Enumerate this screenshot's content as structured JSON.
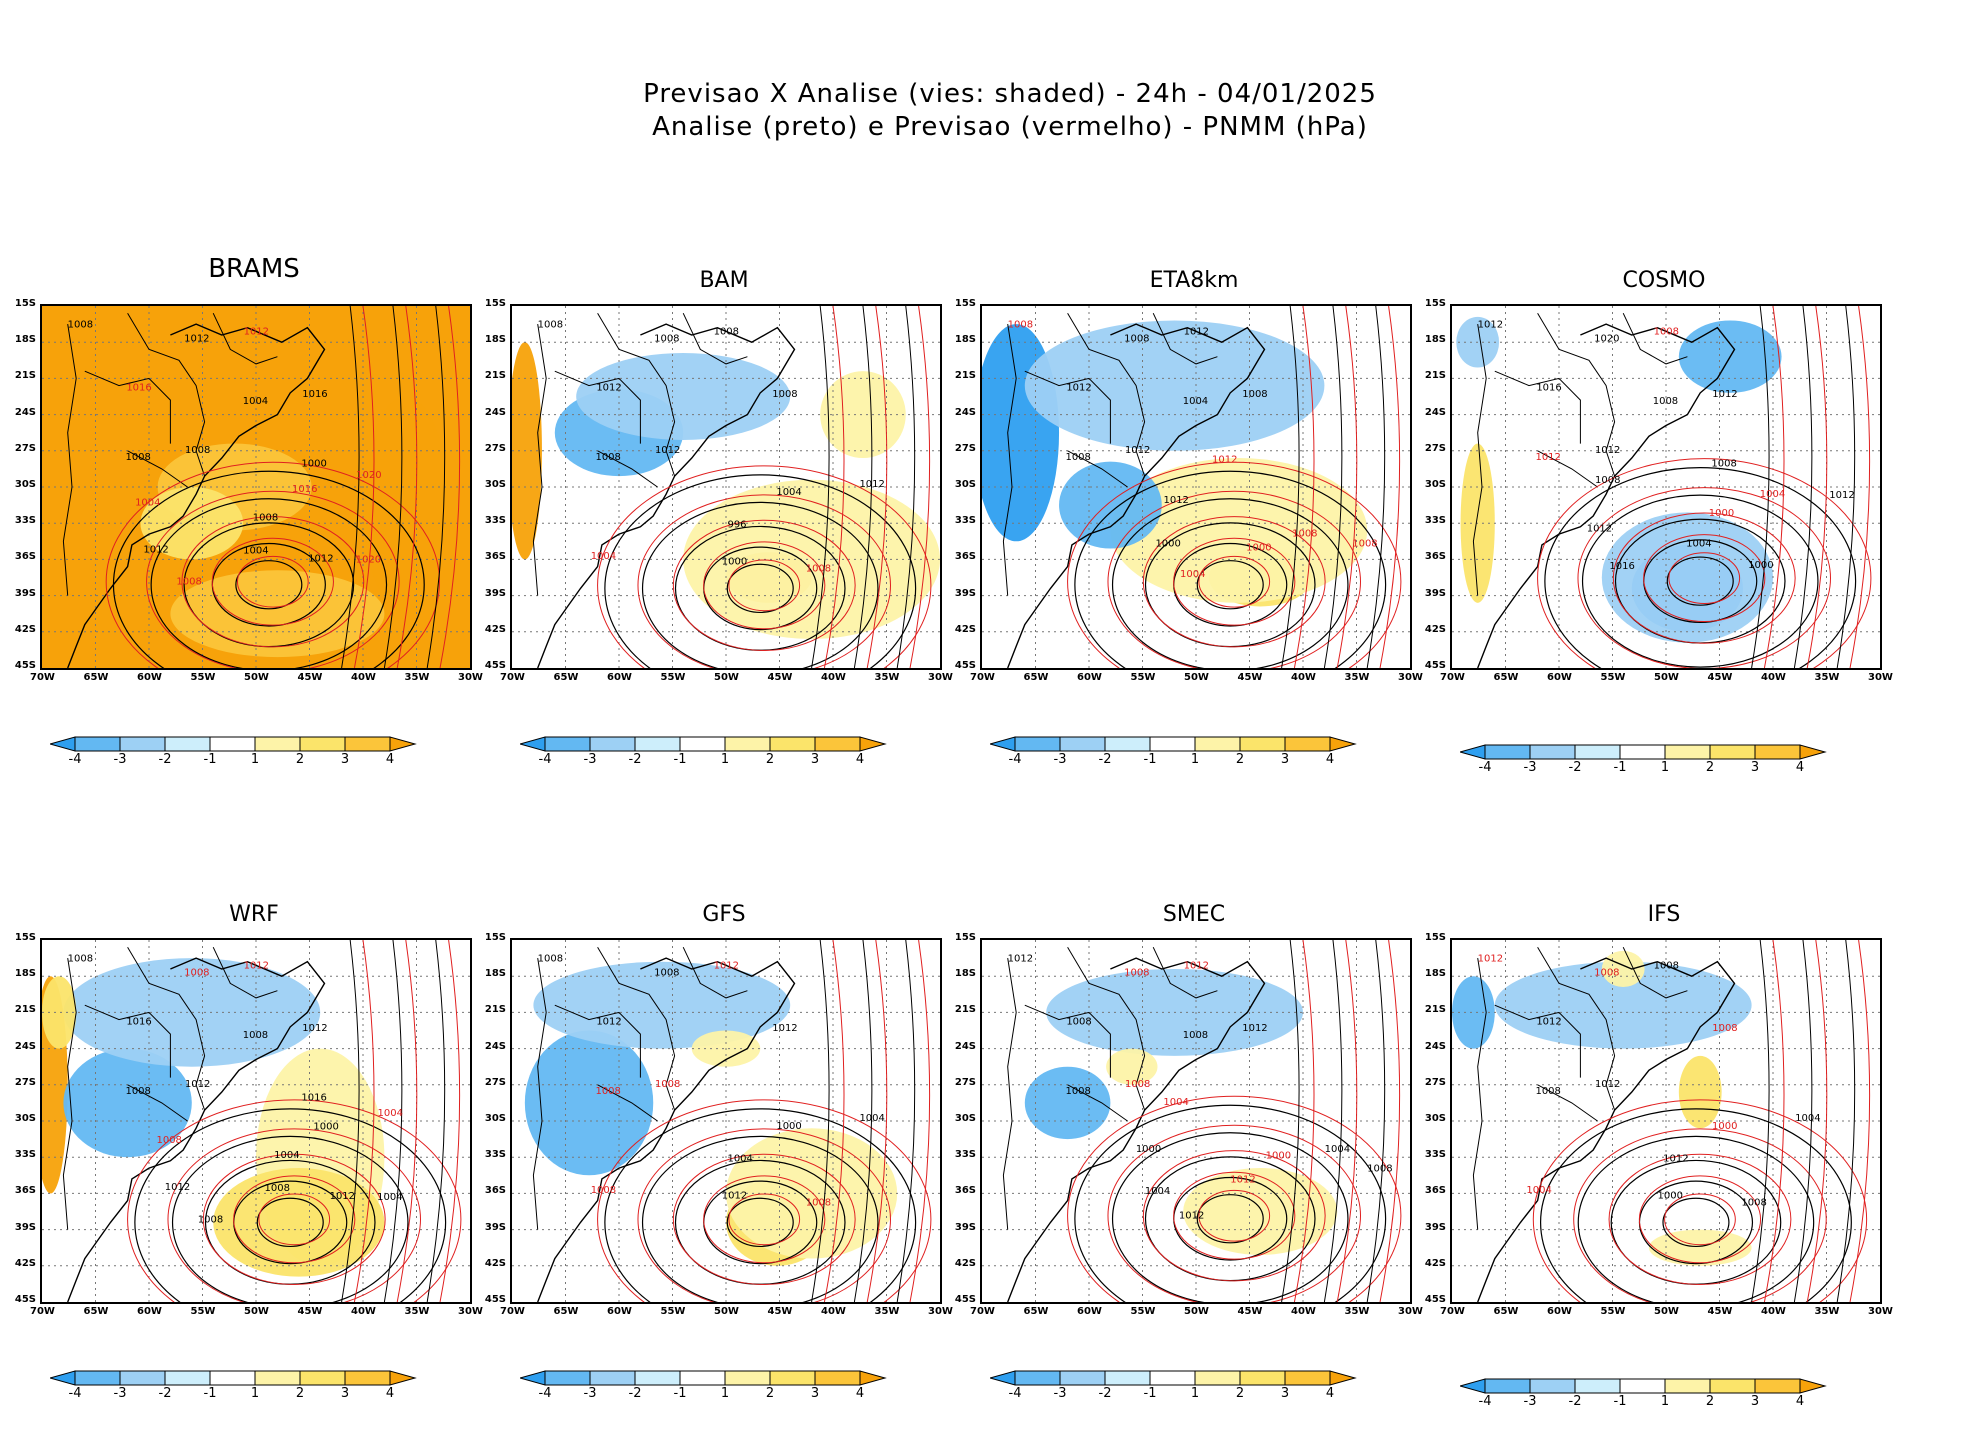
{
  "figure": {
    "title_line1": "Previsao X Analise (vies: shaded) - 24h - 04/01/2025",
    "title_line2": "Analise (preto) e Previsao (vermelho) - PNMM (hPa)"
  },
  "axes": {
    "lat_labels": [
      "15S",
      "18S",
      "21S",
      "24S",
      "27S",
      "30S",
      "33S",
      "36S",
      "39S",
      "42S",
      "45S"
    ],
    "lon_labels": [
      "70W",
      "65W",
      "60W",
      "55W",
      "50W",
      "45W",
      "40W",
      "35W",
      "30W"
    ]
  },
  "colorbar": {
    "labels": [
      "-4",
      "-3",
      "-2",
      "-1",
      "1",
      "2",
      "3",
      "4"
    ],
    "colors": [
      "#2e9ff0",
      "#63b8f2",
      "#9dd0f4",
      "#cdeefb",
      "#ffffff",
      "#fdf3a8",
      "#fbe46a",
      "#fbc53a",
      "#f7a20a"
    ]
  },
  "colors": {
    "analysis": "#000000",
    "forecast": "#e02020",
    "coast": "#000000"
  },
  "panels": [
    {
      "name": "BRAMS",
      "contour_labels": [
        {
          "t": "1008",
          "c": "k"
        },
        {
          "t": "1016",
          "c": "r"
        },
        {
          "t": "1008",
          "c": "k"
        },
        {
          "t": "1012",
          "c": "r"
        },
        {
          "t": "1016",
          "c": "k"
        },
        {
          "t": "1008",
          "c": "k"
        },
        {
          "t": "1012",
          "c": "k"
        },
        {
          "t": "1004",
          "c": "k"
        },
        {
          "t": "1000",
          "c": "k"
        },
        {
          "t": "1008",
          "c": "r"
        },
        {
          "t": "1012",
          "c": "k"
        },
        {
          "t": "1004",
          "c": "r"
        },
        {
          "t": "1004",
          "c": "k"
        },
        {
          "t": "1008",
          "c": "k"
        },
        {
          "t": "1016",
          "c": "r"
        },
        {
          "t": "1020",
          "c": "r"
        },
        {
          "t": "1012",
          "c": "k"
        },
        {
          "t": "1020",
          "c": "r"
        }
      ]
    },
    {
      "name": "BAM",
      "contour_labels": [
        {
          "t": "1008",
          "c": "k"
        },
        {
          "t": "1012",
          "c": "k"
        },
        {
          "t": "1012",
          "c": "k"
        },
        {
          "t": "1008",
          "c": "k"
        },
        {
          "t": "1008",
          "c": "k"
        },
        {
          "t": "1008",
          "c": "k"
        },
        {
          "t": "1008",
          "c": "k"
        },
        {
          "t": "1004",
          "c": "r"
        },
        {
          "t": "1000",
          "c": "k"
        },
        {
          "t": "996",
          "c": "k"
        },
        {
          "t": "1004",
          "c": "k"
        },
        {
          "t": "1012",
          "c": "k"
        },
        {
          "t": "1008",
          "c": "r"
        }
      ]
    },
    {
      "name": "ETA8km",
      "contour_labels": [
        {
          "t": "1008",
          "c": "r"
        },
        {
          "t": "1012",
          "c": "k"
        },
        {
          "t": "1012",
          "c": "k"
        },
        {
          "t": "1012",
          "c": "k"
        },
        {
          "t": "1008",
          "c": "k"
        },
        {
          "t": "1008",
          "c": "k"
        },
        {
          "t": "1008",
          "c": "k"
        },
        {
          "t": "1004",
          "c": "k"
        },
        {
          "t": "1004",
          "c": "r"
        },
        {
          "t": "1000",
          "c": "k"
        },
        {
          "t": "1012",
          "c": "k"
        },
        {
          "t": "1012",
          "c": "r"
        },
        {
          "t": "1000",
          "c": "r"
        },
        {
          "t": "1008",
          "c": "r"
        },
        {
          "t": "1008",
          "c": "r"
        }
      ]
    },
    {
      "name": "COSMO",
      "contour_labels": [
        {
          "t": "1012",
          "c": "k"
        },
        {
          "t": "1016",
          "c": "k"
        },
        {
          "t": "1012",
          "c": "k"
        },
        {
          "t": "1008",
          "c": "r"
        },
        {
          "t": "1012",
          "c": "k"
        },
        {
          "t": "1012",
          "c": "r"
        },
        {
          "t": "1020",
          "c": "k"
        },
        {
          "t": "1008",
          "c": "k"
        },
        {
          "t": "1008",
          "c": "k"
        },
        {
          "t": "1016",
          "c": "k"
        },
        {
          "t": "1012",
          "c": "k"
        },
        {
          "t": "1008",
          "c": "k"
        },
        {
          "t": "1004",
          "c": "k"
        },
        {
          "t": "1000",
          "c": "r"
        },
        {
          "t": "1004",
          "c": "r"
        },
        {
          "t": "1012",
          "c": "k"
        },
        {
          "t": "1000",
          "c": "k"
        }
      ]
    },
    {
      "name": "WRF",
      "contour_labels": [
        {
          "t": "1008",
          "c": "k"
        },
        {
          "t": "1016",
          "c": "k"
        },
        {
          "t": "1012",
          "c": "k"
        },
        {
          "t": "1012",
          "c": "r"
        },
        {
          "t": "1012",
          "c": "k"
        },
        {
          "t": "1008",
          "c": "k"
        },
        {
          "t": "1008",
          "c": "r"
        },
        {
          "t": "1008",
          "c": "k"
        },
        {
          "t": "1016",
          "c": "k"
        },
        {
          "t": "1008",
          "c": "k"
        },
        {
          "t": "1012",
          "c": "k"
        },
        {
          "t": "1008",
          "c": "r"
        },
        {
          "t": "1008",
          "c": "k"
        },
        {
          "t": "1004",
          "c": "k"
        },
        {
          "t": "1000",
          "c": "k"
        },
        {
          "t": "1004",
          "c": "r"
        },
        {
          "t": "1012",
          "c": "k"
        },
        {
          "t": "1004",
          "c": "k"
        }
      ]
    },
    {
      "name": "GFS",
      "contour_labels": [
        {
          "t": "1008",
          "c": "k"
        },
        {
          "t": "1012",
          "c": "k"
        },
        {
          "t": "1008",
          "c": "r"
        },
        {
          "t": "1012",
          "c": "r"
        },
        {
          "t": "1012",
          "c": "k"
        },
        {
          "t": "1008",
          "c": "r"
        },
        {
          "t": "1008",
          "c": "k"
        },
        {
          "t": "1008",
          "c": "r"
        },
        {
          "t": "1012",
          "c": "k"
        },
        {
          "t": "1004",
          "c": "k"
        },
        {
          "t": "1000",
          "c": "k"
        },
        {
          "t": "1004",
          "c": "k"
        },
        {
          "t": "1008",
          "c": "r"
        }
      ]
    },
    {
      "name": "SMEC",
      "contour_labels": [
        {
          "t": "1012",
          "c": "k"
        },
        {
          "t": "1008",
          "c": "k"
        },
        {
          "t": "1008",
          "c": "r"
        },
        {
          "t": "1012",
          "c": "r"
        },
        {
          "t": "1012",
          "c": "k"
        },
        {
          "t": "1008",
          "c": "k"
        },
        {
          "t": "1008",
          "c": "r"
        },
        {
          "t": "1008",
          "c": "k"
        },
        {
          "t": "1012",
          "c": "k"
        },
        {
          "t": "1004",
          "c": "k"
        },
        {
          "t": "1000",
          "c": "k"
        },
        {
          "t": "1004",
          "c": "r"
        },
        {
          "t": "1012",
          "c": "r"
        },
        {
          "t": "1000",
          "c": "r"
        },
        {
          "t": "1004",
          "c": "k"
        },
        {
          "t": "1008",
          "c": "k"
        }
      ]
    },
    {
      "name": "IFS",
      "contour_labels": [
        {
          "t": "1012",
          "c": "r"
        },
        {
          "t": "1012",
          "c": "k"
        },
        {
          "t": "1012",
          "c": "k"
        },
        {
          "t": "1008",
          "c": "k"
        },
        {
          "t": "1008",
          "c": "r"
        },
        {
          "t": "1008",
          "c": "k"
        },
        {
          "t": "1008",
          "c": "r"
        },
        {
          "t": "1004",
          "c": "r"
        },
        {
          "t": "1000",
          "c": "k"
        },
        {
          "t": "1012",
          "c": "k"
        },
        {
          "t": "1000",
          "c": "r"
        },
        {
          "t": "1004",
          "c": "k"
        },
        {
          "t": "1008",
          "c": "k"
        }
      ]
    }
  ]
}
